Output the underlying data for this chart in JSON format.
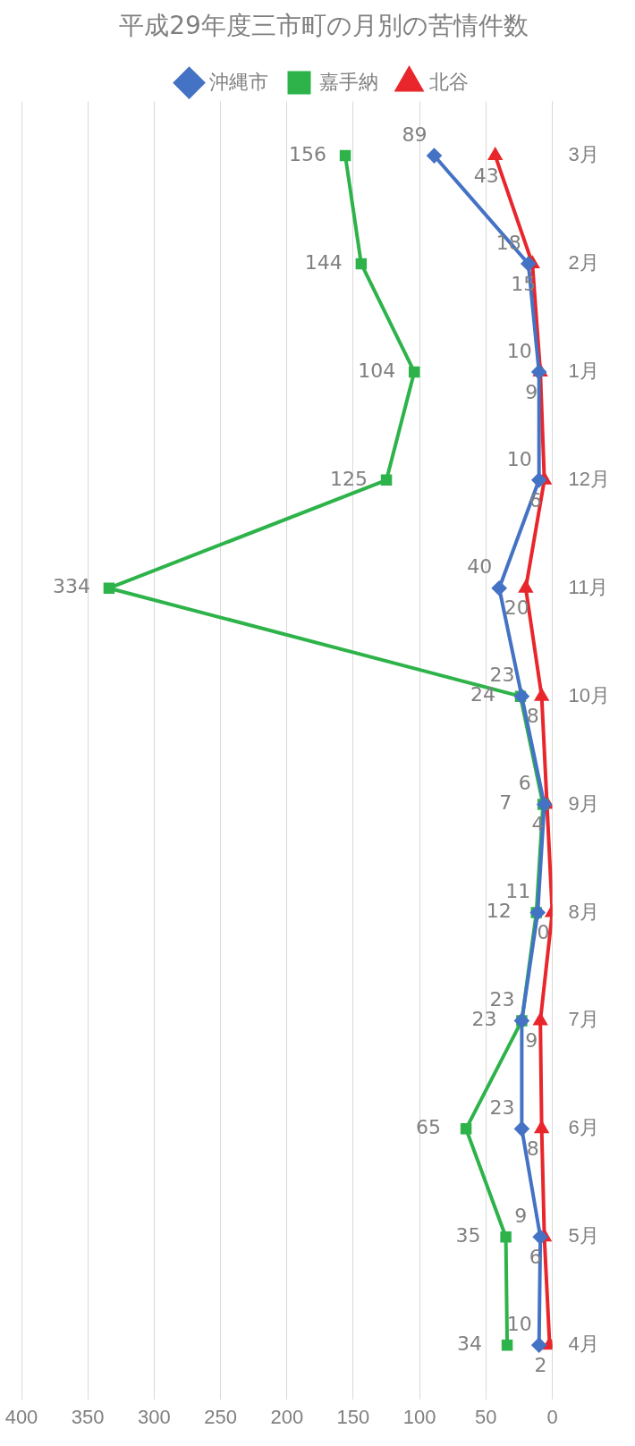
{
  "chart_data": {
    "type": "line",
    "title": "平成29年度三市町の月別の苦情件数",
    "orientation": "horizontal",
    "categories": [
      "3月",
      "2月",
      "1月",
      "12月",
      "11月",
      "10月",
      "9月",
      "8月",
      "7月",
      "6月",
      "5月",
      "4月"
    ],
    "series": [
      {
        "name": "沖縄市",
        "color": "#4472c4",
        "marker": "diamond",
        "values": [
          89,
          18,
          10,
          10,
          40,
          23,
          6,
          11,
          23,
          23,
          9,
          10
        ]
      },
      {
        "name": "嘉手納",
        "color": "#2db34a",
        "marker": "square",
        "values": [
          156,
          144,
          104,
          125,
          334,
          24,
          7,
          12,
          23,
          65,
          35,
          34
        ]
      },
      {
        "name": "北谷",
        "color": "#e8262b",
        "marker": "triangle",
        "values": [
          43,
          15,
          9,
          6,
          20,
          8,
          4,
          0,
          9,
          8,
          6,
          2
        ]
      }
    ],
    "xlim": [
      400,
      0
    ],
    "xticks": [
      0,
      50,
      100,
      150,
      200,
      250,
      300,
      350,
      400
    ],
    "grid": "x",
    "legend": "top",
    "data_labels": true
  }
}
